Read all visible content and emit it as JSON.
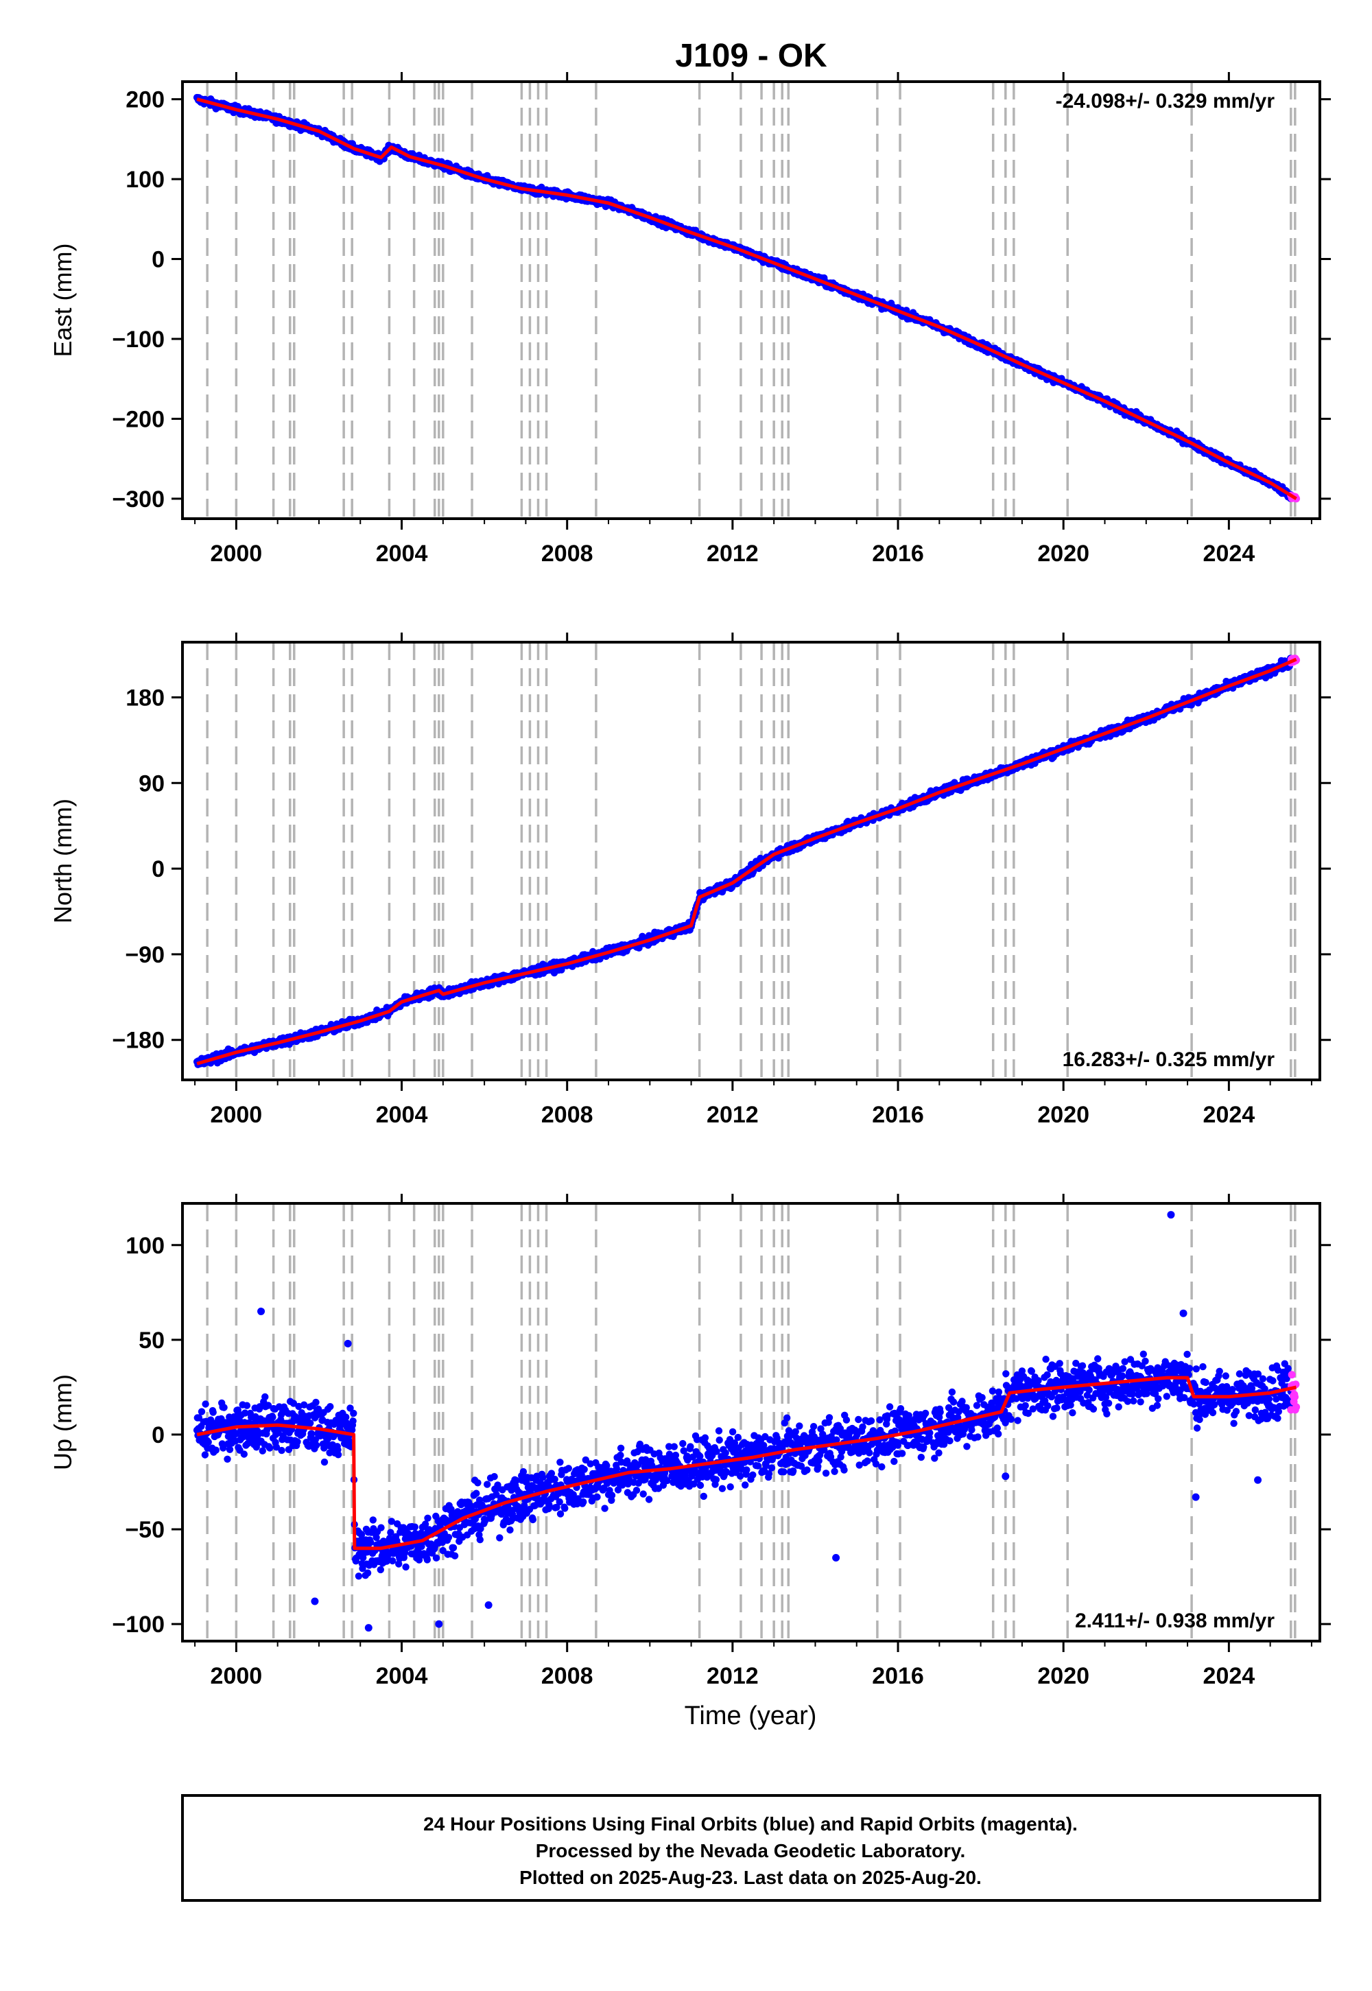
{
  "title": "J109 - OK",
  "chart_data": [
    {
      "type": "scatter",
      "panel": "east",
      "ylabel": "East (mm)",
      "xlabel": "",
      "xlim": [
        1998.7,
        2026.2
      ],
      "ylim": [
        -325,
        222
      ],
      "yticks": [
        200,
        100,
        0,
        -100,
        -200,
        -300
      ],
      "ytick_labels": [
        "200",
        "100",
        "0",
        "−100",
        "−200",
        "−300"
      ],
      "xticks": [
        2000,
        2004,
        2008,
        2012,
        2016,
        2020,
        2024
      ],
      "xtick_labels": [
        "2000",
        "2004",
        "2008",
        "2012",
        "2016",
        "2020",
        "2024"
      ],
      "rate_text": "-24.098+/- 0.329 mm/yr",
      "rate_position": "top-right",
      "series": [
        {
          "name": "Final Orbits",
          "color": "#0000ff",
          "x_range": [
            1999.05,
            2025.5
          ],
          "scatter_mm": 4
        },
        {
          "name": "Rapid Orbits",
          "color": "#ff33ff",
          "x_range": [
            2025.5,
            2025.63
          ],
          "scatter_mm": 3
        },
        {
          "name": "Model",
          "color": "#ff0000",
          "x": [
            1999.05,
            2000.0,
            2001.0,
            2002.0,
            2002.85,
            2003.5,
            2003.75,
            2004.2,
            2005.0,
            2006.0,
            2006.9,
            2008.0,
            2009.0,
            2010.0,
            2011.0,
            2012.0,
            2013.0,
            2014.0,
            2015.0,
            2016.0,
            2017.0,
            2018.0,
            2019.0,
            2020.0,
            2021.0,
            2022.0,
            2023.0,
            2024.0,
            2025.0,
            2025.63
          ],
          "y": [
            200,
            187,
            175,
            160,
            138,
            127,
            140,
            128,
            117,
            100,
            88,
            80,
            70,
            52,
            33,
            15,
            -5,
            -25,
            -45,
            -65,
            -85,
            -108,
            -132,
            -155,
            -178,
            -203,
            -228,
            -255,
            -280,
            -300
          ]
        }
      ]
    },
    {
      "type": "scatter",
      "panel": "north",
      "ylabel": "North (mm)",
      "xlabel": "",
      "xlim": [
        1998.7,
        2026.2
      ],
      "ylim": [
        -222,
        238
      ],
      "yticks": [
        180,
        90,
        0,
        -90,
        -180
      ],
      "ytick_labels": [
        "180",
        "90",
        "0",
        "−90",
        "−180"
      ],
      "xticks": [
        2000,
        2004,
        2008,
        2012,
        2016,
        2020,
        2024
      ],
      "xtick_labels": [
        "2000",
        "2004",
        "2008",
        "2012",
        "2016",
        "2020",
        "2024"
      ],
      "rate_text": "16.283+/- 0.325 mm/yr",
      "rate_position": "bottom-right",
      "series": [
        {
          "name": "Final Orbits",
          "color": "#0000ff",
          "x_range": [
            1999.05,
            2025.5
          ],
          "scatter_mm": 4
        },
        {
          "name": "Rapid Orbits",
          "color": "#ff33ff",
          "x_range": [
            2025.5,
            2025.63
          ],
          "scatter_mm": 3
        },
        {
          "name": "Model",
          "color": "#ff0000",
          "x": [
            1999.05,
            2000.0,
            2001.0,
            2002.0,
            2003.0,
            2003.7,
            2004.0,
            2004.9,
            2005.0,
            2006.0,
            2007.0,
            2008.0,
            2009.0,
            2010.0,
            2011.0,
            2011.2,
            2012.0,
            2012.5,
            2013.0,
            2014.0,
            2015.0,
            2016.0,
            2017.0,
            2018.0,
            2019.0,
            2020.0,
            2021.0,
            2022.0,
            2023.0,
            2024.0,
            2025.0,
            2025.63
          ],
          "y": [
            -205,
            -193,
            -183,
            -172,
            -160,
            -150,
            -140,
            -128,
            -132,
            -120,
            -110,
            -100,
            -88,
            -75,
            -60,
            -30,
            -15,
            0,
            15,
            32,
            48,
            63,
            80,
            95,
            110,
            126,
            142,
            158,
            175,
            192,
            208,
            220
          ]
        }
      ]
    },
    {
      "type": "scatter",
      "panel": "up",
      "ylabel": "Up (mm)",
      "xlabel": "Time (year)",
      "xlim": [
        1998.7,
        2026.2
      ],
      "ylim": [
        -109,
        122
      ],
      "yticks": [
        100,
        50,
        0,
        -50,
        -100
      ],
      "ytick_labels": [
        "100",
        "50",
        "0",
        "−50",
        "−100"
      ],
      "xticks": [
        2000,
        2004,
        2008,
        2012,
        2016,
        2020,
        2024
      ],
      "xtick_labels": [
        "2000",
        "2004",
        "2008",
        "2012",
        "2016",
        "2020",
        "2024"
      ],
      "rate_text": "2.411+/- 0.938 mm/yr",
      "rate_position": "bottom-right",
      "series": [
        {
          "name": "Final Orbits",
          "color": "#0000ff",
          "x_range": [
            1999.05,
            2025.5
          ],
          "scatter_mm": 12
        },
        {
          "name": "Rapid Orbits",
          "color": "#ff33ff",
          "x_range": [
            2025.5,
            2025.63
          ],
          "scatter_mm": 12
        },
        {
          "name": "Model",
          "color": "#ff0000",
          "x": [
            1999.05,
            2000.0,
            2001.0,
            2002.0,
            2002.84,
            2002.86,
            2003.5,
            2004.5,
            2005.5,
            2006.5,
            2007.5,
            2008.5,
            2009.5,
            2010.5,
            2011.5,
            2012.5,
            2013.5,
            2014.5,
            2015.5,
            2016.5,
            2017.5,
            2018.5,
            2018.7,
            2019.5,
            2020.5,
            2021.5,
            2022.5,
            2023.0,
            2023.15,
            2024.0,
            2025.0,
            2025.63
          ],
          "y": [
            0,
            4,
            5,
            3,
            0,
            -60,
            -60,
            -56,
            -44,
            -36,
            -30,
            -25,
            -20,
            -18,
            -15,
            -12,
            -8,
            -5,
            -2,
            2,
            7,
            12,
            22,
            24,
            26,
            28,
            30,
            30,
            20,
            20,
            22,
            25
          ]
        },
        {
          "name": "Outliers",
          "color": "#0000ff",
          "points": [
            [
              2022.6,
              116
            ],
            [
              2000.6,
              65
            ],
            [
              2002.7,
              48
            ],
            [
              2022.9,
              64
            ],
            [
              2024.7,
              -24
            ],
            [
              2014.5,
              -65
            ],
            [
              2003.2,
              -102
            ],
            [
              2004.9,
              -100
            ],
            [
              2006.1,
              -90
            ],
            [
              2023.2,
              -33
            ],
            [
              2018.6,
              -22
            ],
            [
              2001.9,
              -88
            ]
          ]
        }
      ]
    }
  ],
  "footer": {
    "line1": "24 Hour Positions Using Final Orbits (blue) and Rapid Orbits (magenta).",
    "line2": "Processed by the Nevada Geodetic Laboratory.",
    "line3": "Plotted on 2025-Aug-23. Last data on 2025-Aug-20."
  },
  "event_lines": {
    "color": "#b4b4b4",
    "dates": [
      1999.3,
      2000.0,
      2000.9,
      2001.3,
      2001.4,
      2002.6,
      2002.8,
      2003.7,
      2004.3,
      2004.8,
      2004.9,
      2005.0,
      2005.7,
      2006.9,
      2007.1,
      2007.3,
      2007.5,
      2008.7,
      2011.2,
      2012.2,
      2012.7,
      2013.0,
      2013.2,
      2013.35,
      2015.5,
      2016.05,
      2018.3,
      2018.6,
      2018.8,
      2020.1,
      2023.1,
      2025.5,
      2025.6
    ]
  },
  "colors": {
    "final": "#0000ff",
    "rapid": "#ff33ff",
    "model": "#ff0000",
    "event": "#b4b4b4",
    "frame": "#000000"
  }
}
